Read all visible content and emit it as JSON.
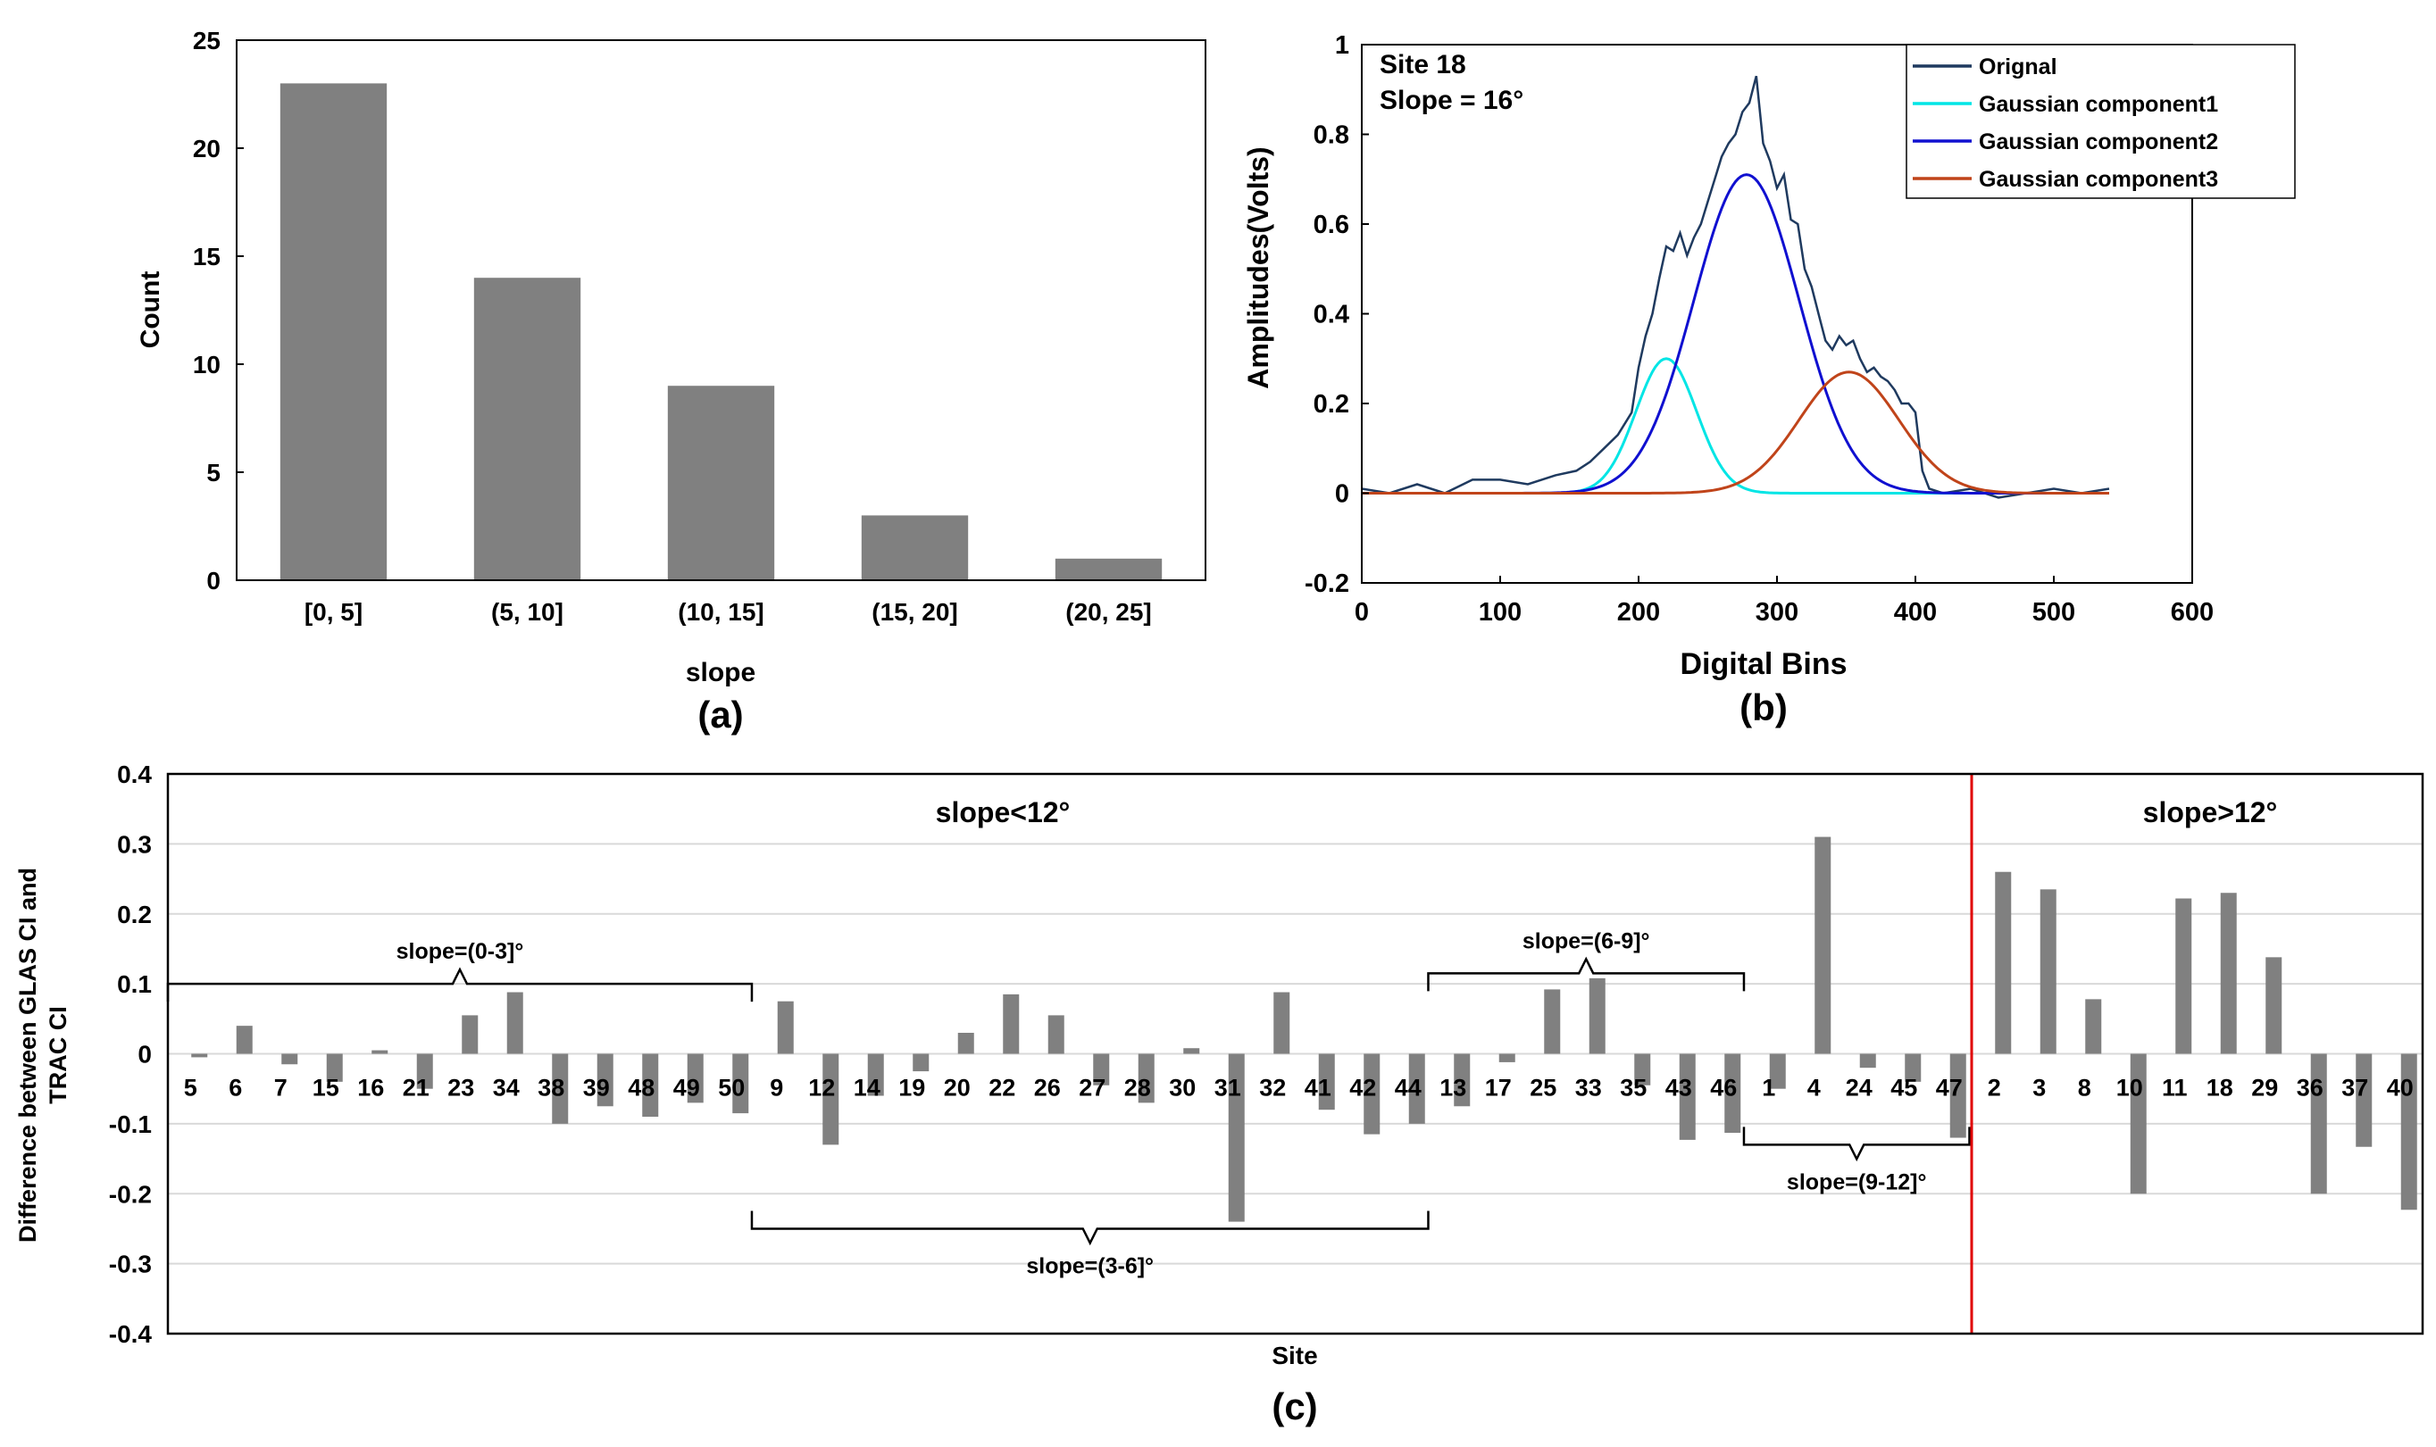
{
  "colors": {
    "bar": "#808080",
    "axis": "#000000",
    "grid": "#d9d9d9",
    "original": "#1f3a5f",
    "g1": "#00e5e5",
    "g2": "#1010d0",
    "g3": "#c0441a",
    "divider": "#e00000"
  },
  "chart_data": [
    {
      "type": "bar",
      "panel": "(a)",
      "categories": [
        "[0, 5]",
        "(5, 10]",
        "(10, 15]",
        "(15, 20]",
        "(20, 25]"
      ],
      "values": [
        23,
        14,
        9,
        3,
        1
      ],
      "xlabel": "slope",
      "ylabel": "Count",
      "ylim": [
        0,
        25
      ],
      "yticks": [
        "0",
        "5",
        "10",
        "15",
        "20",
        "25"
      ],
      "grid": false
    },
    {
      "type": "line",
      "panel": "(b)",
      "annotation": [
        "Site 18",
        "Slope = 16°"
      ],
      "xlabel": "Digital Bins",
      "ylabel": "Amplitudes(Volts)",
      "xlim": [
        0,
        600
      ],
      "ylim": [
        -0.2,
        1
      ],
      "xticks": [
        "0",
        "100",
        "200",
        "300",
        "400",
        "500",
        "600"
      ],
      "yticks": [
        "-0.2",
        "0",
        "0.2",
        "0.4",
        "0.6",
        "0.8",
        "1"
      ],
      "legend_position": "top-right",
      "series": [
        {
          "name": "Orignal",
          "color_key": "original",
          "x": [
            0,
            20,
            40,
            60,
            80,
            100,
            120,
            140,
            155,
            165,
            175,
            185,
            195,
            200,
            205,
            210,
            215,
            220,
            225,
            230,
            235,
            240,
            245,
            250,
            255,
            260,
            265,
            270,
            275,
            280,
            285,
            290,
            295,
            300,
            305,
            310,
            315,
            320,
            325,
            330,
            335,
            340,
            345,
            350,
            355,
            360,
            365,
            370,
            375,
            380,
            385,
            390,
            395,
            400,
            405,
            410,
            420,
            440,
            460,
            480,
            500,
            520,
            540
          ],
          "y": [
            0.01,
            0.0,
            0.02,
            0.0,
            0.03,
            0.03,
            0.02,
            0.04,
            0.05,
            0.07,
            0.1,
            0.13,
            0.18,
            0.28,
            0.35,
            0.4,
            0.48,
            0.55,
            0.54,
            0.58,
            0.53,
            0.57,
            0.6,
            0.65,
            0.7,
            0.75,
            0.78,
            0.8,
            0.85,
            0.87,
            0.93,
            0.78,
            0.74,
            0.68,
            0.71,
            0.61,
            0.6,
            0.5,
            0.46,
            0.4,
            0.34,
            0.32,
            0.35,
            0.33,
            0.34,
            0.3,
            0.27,
            0.28,
            0.26,
            0.25,
            0.23,
            0.2,
            0.2,
            0.18,
            0.05,
            0.01,
            0.0,
            0.01,
            -0.01,
            0.0,
            0.01,
            0.0,
            0.01
          ]
        },
        {
          "name": "Gaussian component1",
          "color_key": "g1",
          "amplitude": 0.3,
          "center": 220,
          "sigma": 22,
          "x_range": [
            0,
            540
          ]
        },
        {
          "name": "Gaussian component2",
          "color_key": "g2",
          "amplitude": 0.71,
          "center": 278,
          "sigma": 38,
          "x_range": [
            0,
            540
          ]
        },
        {
          "name": "Gaussian component3",
          "color_key": "g3",
          "amplitude": 0.27,
          "center": 352,
          "sigma": 36,
          "x_range": [
            0,
            540
          ]
        }
      ]
    },
    {
      "type": "bar",
      "panel": "(c)",
      "categories": [
        "5",
        "6",
        "7",
        "15",
        "16",
        "21",
        "23",
        "34",
        "38",
        "39",
        "48",
        "49",
        "50",
        "9",
        "12",
        "14",
        "19",
        "20",
        "22",
        "26",
        "27",
        "28",
        "30",
        "31",
        "32",
        "41",
        "42",
        "44",
        "13",
        "17",
        "25",
        "33",
        "35",
        "43",
        "46",
        "1",
        "4",
        "24",
        "45",
        "47",
        "2",
        "3",
        "8",
        "10",
        "11",
        "18",
        "29",
        "36",
        "37",
        "40"
      ],
      "values": [
        -0.005,
        0.04,
        -0.015,
        -0.04,
        0.005,
        -0.05,
        0.055,
        0.088,
        -0.1,
        -0.075,
        -0.09,
        -0.07,
        -0.085,
        0.075,
        -0.13,
        -0.06,
        -0.025,
        0.03,
        0.085,
        0.055,
        -0.045,
        -0.07,
        0.008,
        -0.24,
        0.088,
        -0.08,
        -0.115,
        -0.1,
        -0.075,
        -0.012,
        0.092,
        0.108,
        -0.045,
        -0.123,
        -0.113,
        -0.05,
        0.31,
        -0.02,
        -0.04,
        -0.12,
        0.26,
        0.235,
        0.078,
        -0.2,
        0.222,
        0.23,
        0.138,
        -0.2,
        -0.133,
        -0.223
      ],
      "xlabel": "Site",
      "ylabel": "Difference between GLAS CI and TRAC CI",
      "ylim": [
        -0.4,
        0.4
      ],
      "yticks": [
        "-0.4",
        "-0.3",
        "-0.2",
        "-0.1",
        "0",
        "0.1",
        "0.2",
        "0.3",
        "0.4"
      ],
      "grid": true,
      "divider_after_index": 39,
      "region_labels": [
        "slope<12°",
        "slope>12°"
      ],
      "group_annotations": [
        {
          "label": "slope=(0-3]°",
          "from_index": 0,
          "to_index": 12,
          "side": "top",
          "bracket_value": 0.1
        },
        {
          "label": "slope=(3-6]°",
          "from_index": 13,
          "to_index": 27,
          "side": "bottom",
          "bracket_value": -0.25
        },
        {
          "label": "slope=(6-9]°",
          "from_index": 28,
          "to_index": 34,
          "side": "top",
          "bracket_value": 0.115
        },
        {
          "label": "slope=(9-12]°",
          "from_index": 35,
          "to_index": 39,
          "side": "bottom",
          "bracket_value": -0.13
        }
      ]
    }
  ]
}
